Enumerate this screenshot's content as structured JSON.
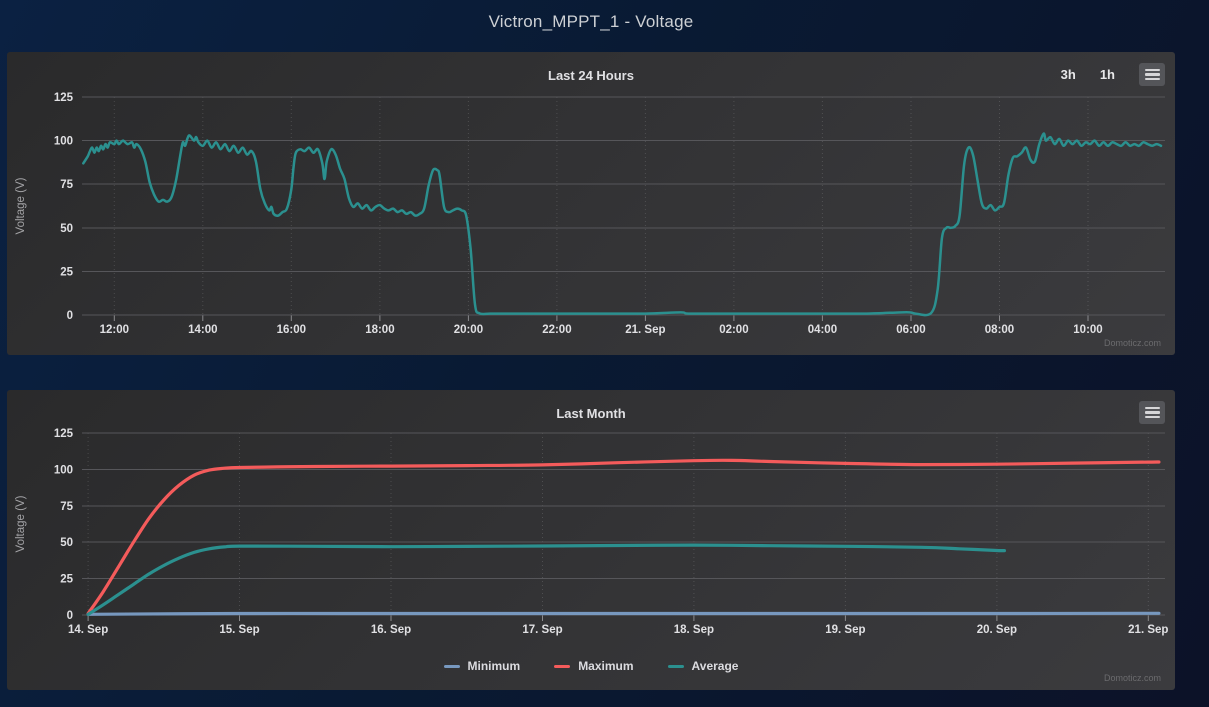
{
  "page": {
    "title": "Victron_MPPT_1 - Voltage"
  },
  "chart_data": [
    {
      "type": "line",
      "title": "Last 24 Hours",
      "ylabel": "Voltage (V)",
      "ydomain": [
        0,
        125
      ],
      "yticks": [
        0,
        25,
        50,
        75,
        100,
        125
      ],
      "xdomain": [
        11.27,
        35.74
      ],
      "xticks": [
        {
          "x": 12,
          "label": "12:00"
        },
        {
          "x": 14,
          "label": "14:00"
        },
        {
          "x": 16,
          "label": "16:00"
        },
        {
          "x": 18,
          "label": "18:00"
        },
        {
          "x": 20,
          "label": "20:00"
        },
        {
          "x": 22,
          "label": "22:00"
        },
        {
          "x": 24,
          "label": "21. Sep"
        },
        {
          "x": 26,
          "label": "02:00"
        },
        {
          "x": 28,
          "label": "04:00"
        },
        {
          "x": 30,
          "label": "06:00"
        },
        {
          "x": 32,
          "label": "08:00"
        },
        {
          "x": 34,
          "label": "10:00"
        }
      ],
      "grid": true,
      "legend_position": "none",
      "range_buttons": [
        "3h",
        "1h"
      ],
      "credits": "Domoticz.com",
      "series": [
        {
          "name": "Voltage",
          "color": "#2b908f",
          "points": [
            [
              11.3,
              87
            ],
            [
              11.4,
              91
            ],
            [
              11.45,
              94
            ],
            [
              11.5,
              96
            ],
            [
              11.55,
              93
            ],
            [
              11.6,
              96
            ],
            [
              11.65,
              94
            ],
            [
              11.7,
              97
            ],
            [
              11.75,
              95
            ],
            [
              11.8,
              98
            ],
            [
              11.85,
              96
            ],
            [
              11.9,
              99
            ],
            [
              12.0,
              98
            ],
            [
              12.05,
              100
            ],
            [
              12.1,
              98
            ],
            [
              12.15,
              99
            ],
            [
              12.2,
              100
            ],
            [
              12.3,
              98
            ],
            [
              12.4,
              99
            ],
            [
              12.45,
              96
            ],
            [
              12.5,
              98
            ],
            [
              12.6,
              95
            ],
            [
              12.7,
              88
            ],
            [
              12.8,
              76
            ],
            [
              12.9,
              69
            ],
            [
              13.0,
              65
            ],
            [
              13.1,
              66
            ],
            [
              13.2,
              65
            ],
            [
              13.3,
              68
            ],
            [
              13.4,
              78
            ],
            [
              13.5,
              93
            ],
            [
              13.55,
              99
            ],
            [
              13.6,
              97
            ],
            [
              13.65,
              101
            ],
            [
              13.7,
              103
            ],
            [
              13.8,
              100
            ],
            [
              13.85,
              102
            ],
            [
              13.9,
              99
            ],
            [
              14.0,
              97
            ],
            [
              14.1,
              100
            ],
            [
              14.2,
              96
            ],
            [
              14.3,
              99
            ],
            [
              14.4,
              95
            ],
            [
              14.5,
              98
            ],
            [
              14.6,
              94
            ],
            [
              14.7,
              97
            ],
            [
              14.8,
              93
            ],
            [
              14.9,
              96
            ],
            [
              15.0,
              92
            ],
            [
              15.1,
              94
            ],
            [
              15.2,
              88
            ],
            [
              15.3,
              72
            ],
            [
              15.4,
              64
            ],
            [
              15.5,
              60
            ],
            [
              15.55,
              62
            ],
            [
              15.6,
              58
            ],
            [
              15.7,
              57
            ],
            [
              15.8,
              59
            ],
            [
              15.9,
              61
            ],
            [
              16.0,
              72
            ],
            [
              16.05,
              85
            ],
            [
              16.1,
              93
            ],
            [
              16.2,
              95
            ],
            [
              16.3,
              94
            ],
            [
              16.4,
              96
            ],
            [
              16.5,
              93
            ],
            [
              16.6,
              95
            ],
            [
              16.7,
              87
            ],
            [
              16.75,
              78
            ],
            [
              16.8,
              88
            ],
            [
              16.9,
              95
            ],
            [
              17.0,
              92
            ],
            [
              17.1,
              84
            ],
            [
              17.2,
              78
            ],
            [
              17.3,
              67
            ],
            [
              17.4,
              62
            ],
            [
              17.5,
              64
            ],
            [
              17.6,
              61
            ],
            [
              17.7,
              63
            ],
            [
              17.8,
              60
            ],
            [
              17.9,
              62
            ],
            [
              18.0,
              63
            ],
            [
              18.1,
              61
            ],
            [
              18.2,
              60
            ],
            [
              18.3,
              61
            ],
            [
              18.4,
              59
            ],
            [
              18.5,
              60
            ],
            [
              18.6,
              58
            ],
            [
              18.7,
              59
            ],
            [
              18.8,
              57
            ],
            [
              18.9,
              58
            ],
            [
              19.0,
              61
            ],
            [
              19.1,
              74
            ],
            [
              19.2,
              83
            ],
            [
              19.3,
              83
            ],
            [
              19.35,
              80
            ],
            [
              19.45,
              62
            ],
            [
              19.55,
              59
            ],
            [
              19.65,
              60
            ],
            [
              19.75,
              61
            ],
            [
              19.85,
              60
            ],
            [
              19.95,
              57
            ],
            [
              20.05,
              38
            ],
            [
              20.15,
              6
            ],
            [
              20.25,
              1
            ],
            [
              20.5,
              0.8
            ],
            [
              21.0,
              0.8
            ],
            [
              22.0,
              0.8
            ],
            [
              23.0,
              0.8
            ],
            [
              24.0,
              0.8
            ],
            [
              24.8,
              1.5
            ],
            [
              25.0,
              0.8
            ],
            [
              26.0,
              0.8
            ],
            [
              27.0,
              0.8
            ],
            [
              28.0,
              0.8
            ],
            [
              29.0,
              0.8
            ],
            [
              29.9,
              1.6
            ],
            [
              30.1,
              0.8
            ],
            [
              30.45,
              1
            ],
            [
              30.6,
              14
            ],
            [
              30.7,
              44
            ],
            [
              30.8,
              50
            ],
            [
              30.9,
              50
            ],
            [
              31.0,
              51
            ],
            [
              31.1,
              57
            ],
            [
              31.2,
              86
            ],
            [
              31.3,
              96
            ],
            [
              31.4,
              92
            ],
            [
              31.5,
              78
            ],
            [
              31.6,
              64
            ],
            [
              31.7,
              61
            ],
            [
              31.8,
              63
            ],
            [
              31.9,
              60
            ],
            [
              32.0,
              62
            ],
            [
              32.1,
              64
            ],
            [
              32.2,
              80
            ],
            [
              32.3,
              90
            ],
            [
              32.4,
              91
            ],
            [
              32.5,
              93
            ],
            [
              32.6,
              96
            ],
            [
              32.7,
              89
            ],
            [
              32.8,
              88
            ],
            [
              32.9,
              98
            ],
            [
              33.0,
              104
            ],
            [
              33.05,
              100
            ],
            [
              33.15,
              102
            ],
            [
              33.25,
              98
            ],
            [
              33.35,
              101
            ],
            [
              33.45,
              97
            ],
            [
              33.55,
              100
            ],
            [
              33.65,
              98
            ],
            [
              33.75,
              100
            ],
            [
              33.85,
              97
            ],
            [
              33.95,
              99
            ],
            [
              34.05,
              98
            ],
            [
              34.15,
              100
            ],
            [
              34.25,
              97
            ],
            [
              34.35,
              99
            ],
            [
              34.45,
              97
            ],
            [
              34.55,
              99
            ],
            [
              34.65,
              98
            ],
            [
              34.75,
              97
            ],
            [
              34.85,
              99
            ],
            [
              34.95,
              97
            ],
            [
              35.05,
              98
            ],
            [
              35.15,
              97
            ],
            [
              35.25,
              99
            ],
            [
              35.35,
              98
            ],
            [
              35.45,
              97
            ],
            [
              35.55,
              98
            ],
            [
              35.65,
              97
            ]
          ]
        }
      ]
    },
    {
      "type": "line",
      "title": "Last Month",
      "ylabel": "Voltage (V)",
      "ydomain": [
        0,
        125
      ],
      "yticks": [
        0,
        25,
        50,
        75,
        100,
        125
      ],
      "xdomain": [
        13.96,
        21.11
      ],
      "xticks": [
        {
          "x": 14,
          "label": "14. Sep"
        },
        {
          "x": 15,
          "label": "15. Sep"
        },
        {
          "x": 16,
          "label": "16. Sep"
        },
        {
          "x": 17,
          "label": "17. Sep"
        },
        {
          "x": 18,
          "label": "18. Sep"
        },
        {
          "x": 19,
          "label": "19. Sep"
        },
        {
          "x": 20,
          "label": "20. Sep"
        },
        {
          "x": 21,
          "label": "21. Sep"
        }
      ],
      "grid": true,
      "legend_position": "bottom-center",
      "credits": "Domoticz.com",
      "series": [
        {
          "name": "Minimum",
          "color": "#7798bf",
          "points": [
            [
              14.0,
              0.5
            ],
            [
              15,
              1
            ],
            [
              16,
              1
            ],
            [
              17,
              1
            ],
            [
              18,
              1
            ],
            [
              19,
              1
            ],
            [
              20,
              1
            ],
            [
              21.07,
              1.2
            ]
          ]
        },
        {
          "name": "Maximum",
          "color": "#f45b5b",
          "points": [
            [
              14.0,
              1
            ],
            [
              14.1,
              16
            ],
            [
              14.2,
              33
            ],
            [
              14.3,
              50
            ],
            [
              14.4,
              66
            ],
            [
              14.5,
              79
            ],
            [
              14.6,
              89
            ],
            [
              14.7,
              96
            ],
            [
              14.8,
              99.5
            ],
            [
              14.9,
              100.8
            ],
            [
              15.0,
              101.3
            ],
            [
              15.25,
              101.7
            ],
            [
              15.5,
              102
            ],
            [
              16.0,
              102.3
            ],
            [
              16.5,
              102.6
            ],
            [
              17.0,
              103.1
            ],
            [
              17.5,
              104.6
            ],
            [
              18.0,
              106
            ],
            [
              18.25,
              106.2
            ],
            [
              18.5,
              105.4
            ],
            [
              19.0,
              104.1
            ],
            [
              19.5,
              103.3
            ],
            [
              20.0,
              103.6
            ],
            [
              20.5,
              104.3
            ],
            [
              21.0,
              105
            ],
            [
              21.07,
              105.1
            ]
          ]
        },
        {
          "name": "Average",
          "color": "#2b908f",
          "points": [
            [
              14.0,
              0.5
            ],
            [
              14.1,
              7
            ],
            [
              14.2,
              14
            ],
            [
              14.3,
              21
            ],
            [
              14.4,
              28
            ],
            [
              14.5,
              34
            ],
            [
              14.6,
              39
            ],
            [
              14.7,
              43
            ],
            [
              14.8,
              45.5
            ],
            [
              14.9,
              46.8
            ],
            [
              15.0,
              47.3
            ],
            [
              15.5,
              47.2
            ],
            [
              16.0,
              46.9
            ],
            [
              16.5,
              47.1
            ],
            [
              17.0,
              47.4
            ],
            [
              17.5,
              47.7
            ],
            [
              18.0,
              48
            ],
            [
              18.5,
              47.6
            ],
            [
              19.0,
              47.2
            ],
            [
              19.5,
              46.5
            ],
            [
              19.75,
              45.5
            ],
            [
              20.0,
              44.3
            ],
            [
              20.05,
              44.2
            ]
          ]
        }
      ]
    }
  ]
}
